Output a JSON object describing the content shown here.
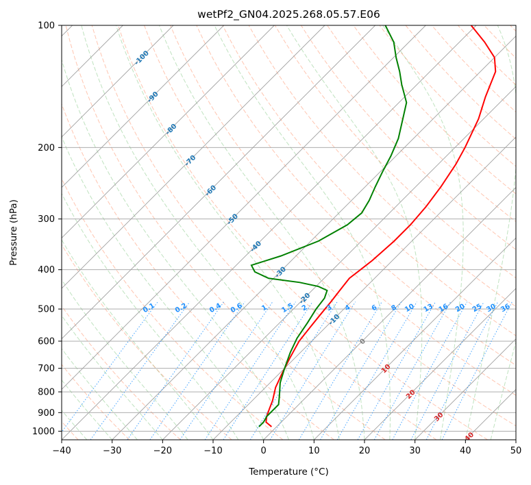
{
  "title": "wetPf2_GN04.2025.268.05.57.E06",
  "chart_data": {
    "type": "skew-t",
    "title": "wetPf2_GN04.2025.268.05.57.E06",
    "xlabel": "Temperature (°C)",
    "ylabel": "Pressure (hPa)",
    "xlim": [
      -40,
      50
    ],
    "ylim": [
      1050,
      100
    ],
    "x_ticks": [
      -40,
      -30,
      -20,
      -10,
      0,
      10,
      20,
      30,
      40,
      50
    ],
    "y_ticks": [
      100,
      200,
      300,
      400,
      500,
      600,
      700,
      800,
      900,
      1000
    ],
    "grid": true,
    "colors": {
      "temperature": "#ff0000",
      "dewpoint": "#008000",
      "isotherm": "#a0a0a0",
      "dry_adiabat": "#ff7f50",
      "moist_adiabat": "#2ca02c",
      "mixing_ratio": "#1e90ff",
      "label_cold": "#1f77b4",
      "label_zero": "#808080",
      "label_warm": "#d62728"
    },
    "series": [
      {
        "name": "Temperature",
        "points": [
          [
            -1,
            975
          ],
          [
            -3,
            950
          ],
          [
            -4,
            920
          ],
          [
            -5,
            880
          ],
          [
            -6,
            840
          ],
          [
            -8,
            780
          ],
          [
            -9.5,
            720
          ],
          [
            -11,
            660
          ],
          [
            -12.5,
            600
          ],
          [
            -13,
            560
          ],
          [
            -13.5,
            520
          ],
          [
            -14,
            480
          ],
          [
            -14.5,
            450
          ],
          [
            -15,
            420
          ],
          [
            -14.5,
            400
          ],
          [
            -14,
            380
          ],
          [
            -13.5,
            340
          ],
          [
            -13.5,
            310
          ],
          [
            -14,
            280
          ],
          [
            -15,
            250
          ],
          [
            -16.5,
            220
          ],
          [
            -18,
            200
          ],
          [
            -21,
            170
          ],
          [
            -24,
            150
          ],
          [
            -27,
            130
          ],
          [
            -30,
            120
          ],
          [
            -35,
            110
          ],
          [
            -41,
            100
          ]
        ]
      },
      {
        "name": "Dewpoint",
        "points": [
          [
            -3.5,
            975
          ],
          [
            -3.5,
            950
          ],
          [
            -4,
            920
          ],
          [
            -4,
            890
          ],
          [
            -4,
            860
          ],
          [
            -5.5,
            820
          ],
          [
            -8,
            760
          ],
          [
            -10,
            700
          ],
          [
            -12,
            640
          ],
          [
            -13.5,
            590
          ],
          [
            -14.5,
            540
          ],
          [
            -15.5,
            500
          ],
          [
            -16,
            470
          ],
          [
            -17,
            450
          ],
          [
            -19.5,
            440
          ],
          [
            -24,
            430
          ],
          [
            -31,
            420
          ],
          [
            -35,
            405
          ],
          [
            -37,
            390
          ],
          [
            -33,
            370
          ],
          [
            -28.5,
            340
          ],
          [
            -26,
            310
          ],
          [
            -25.5,
            290
          ],
          [
            -26.5,
            270
          ],
          [
            -28,
            250
          ],
          [
            -29.5,
            230
          ],
          [
            -31,
            210
          ],
          [
            -33,
            190
          ],
          [
            -36,
            170
          ],
          [
            -38.5,
            155
          ],
          [
            -43,
            140
          ],
          [
            -46,
            130
          ],
          [
            -49.5,
            120
          ],
          [
            -53,
            110
          ],
          [
            -58,
            100
          ]
        ]
      }
    ],
    "annotations": {
      "isotherm_labels": [
        "-100",
        "-90",
        "-80",
        "-70",
        "-60",
        "-50",
        "-40",
        "-30",
        "-20",
        "-10",
        "0",
        "10",
        "20",
        "30",
        "40"
      ],
      "mixing_ratio_labels": [
        "0.1",
        "0.2",
        "0.4",
        "0.6",
        "1",
        "1.5",
        "2",
        "3",
        "4",
        "6",
        "8",
        "10",
        "13",
        "16",
        "20",
        "25",
        "30",
        "36"
      ]
    }
  }
}
